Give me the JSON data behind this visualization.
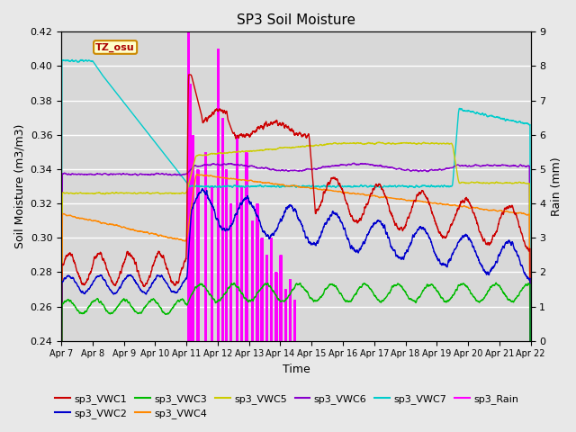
{
  "title": "SP3 Soil Moisture",
  "xlabel": "Time",
  "ylabel_left": "Soil Moisture (m3/m3)",
  "ylabel_right": "Rain (mm)",
  "ylim_left": [
    0.24,
    0.42
  ],
  "ylim_right": [
    0.0,
    9.0
  ],
  "background_color": "#e8e8e8",
  "plot_bg_color": "#d8d8d8",
  "xtick_labels": [
    "Apr 7",
    "Apr 8",
    "Apr 9",
    "Apr 10",
    "Apr 11",
    "Apr 12",
    "Apr 13",
    "Apr 14",
    "Apr 15",
    "Apr 16",
    "Apr 17",
    "Apr 18",
    "Apr 19",
    "Apr 20",
    "Apr 21",
    "Apr 22"
  ],
  "watermark_text": "TZ_osu",
  "colors": {
    "sp3_VWC1": "#cc0000",
    "sp3_VWC2": "#0000cc",
    "sp3_VWC3": "#00bb00",
    "sp3_VWC4": "#ff8800",
    "sp3_VWC5": "#cccc00",
    "sp3_VWC6": "#8800cc",
    "sp3_VWC7": "#00cccc",
    "sp3_Rain": "#ff00ff"
  }
}
